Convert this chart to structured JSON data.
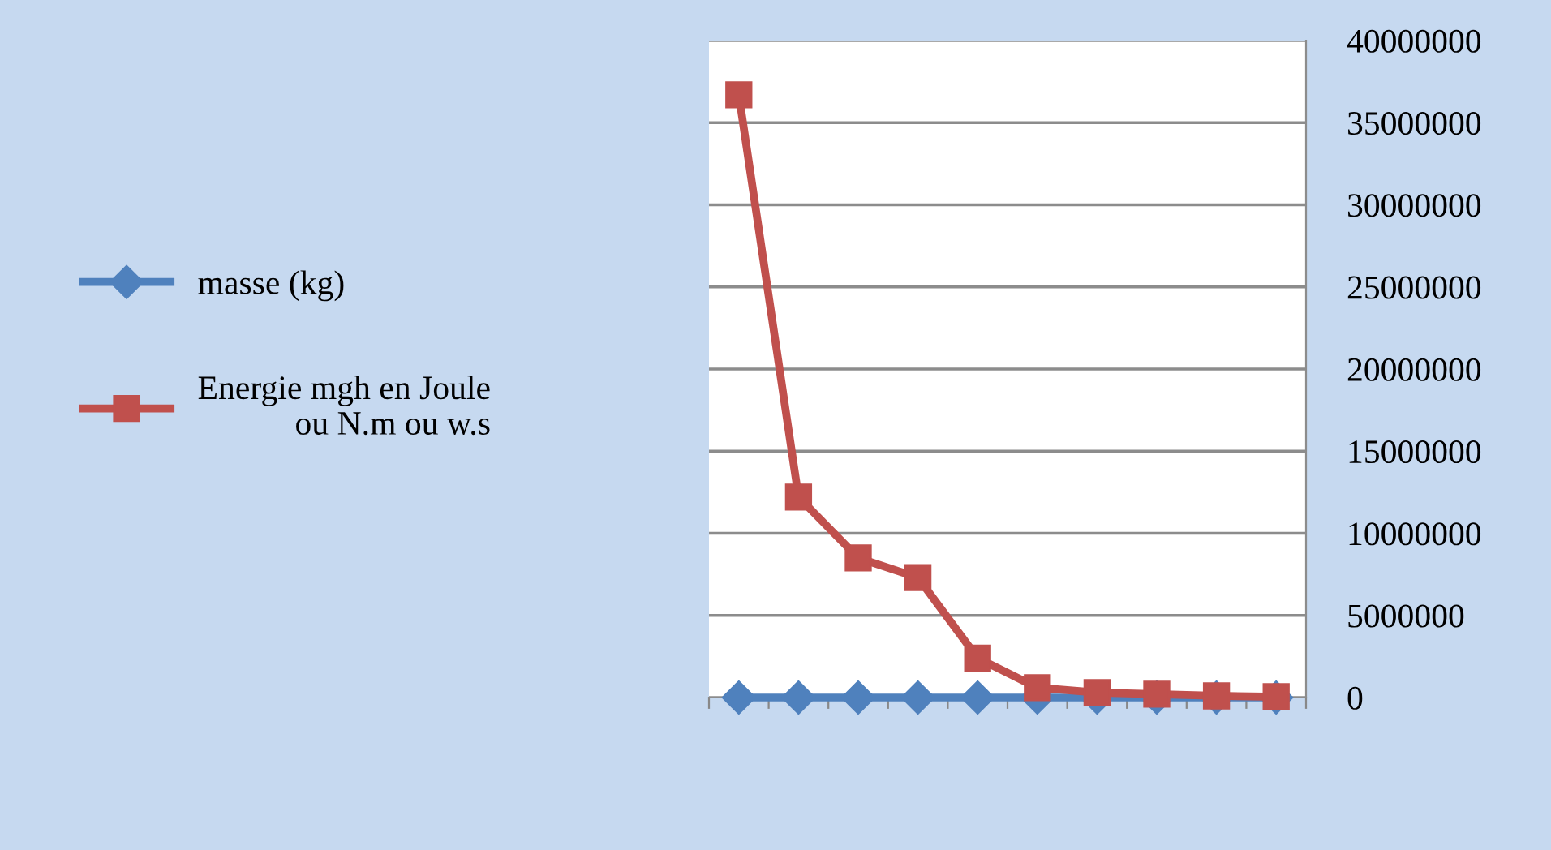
{
  "chart_data": {
    "type": "line",
    "categories": [
      null,
      null,
      null,
      null,
      null,
      null,
      null,
      null,
      null,
      null
    ],
    "series": [
      {
        "name": "masse (kg)",
        "color": "#4f81bd",
        "marker": "diamond",
        "values": [
          0,
          0,
          0,
          0,
          0,
          0,
          0,
          0,
          0,
          0
        ]
      },
      {
        "name": "Energie mgh en Joule\nou N.m ou w.s",
        "color": "#c0504d",
        "marker": "square",
        "values": [
          36700000,
          12200000,
          8500000,
          7300000,
          2400000,
          600000,
          300000,
          200000,
          100000,
          50000
        ]
      }
    ],
    "ylim": [
      0,
      40000000
    ],
    "yticks": [
      0,
      5000000,
      10000000,
      15000000,
      20000000,
      25000000,
      30000000,
      35000000,
      40000000
    ],
    "grid": "y",
    "legend": "left",
    "tick_labels": "y"
  }
}
